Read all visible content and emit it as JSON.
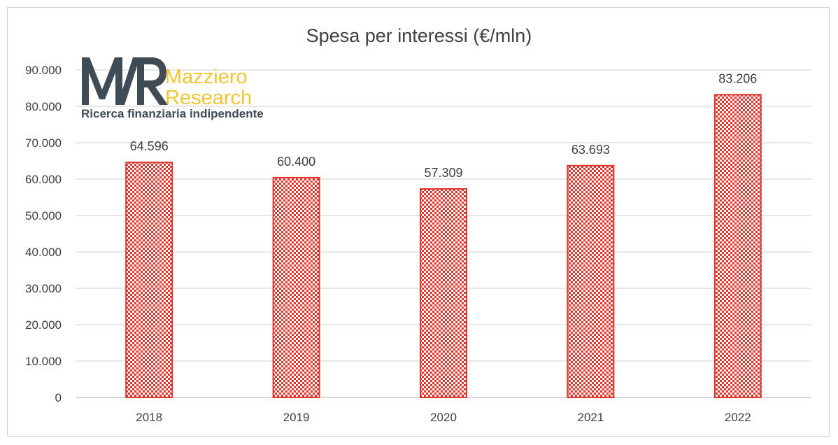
{
  "chart_data": {
    "type": "bar",
    "title": "Spesa per interessi (€/mln)",
    "categories": [
      "2018",
      "2019",
      "2020",
      "2021",
      "2022"
    ],
    "values": [
      64596,
      60400,
      57309,
      63693,
      83206
    ],
    "data_labels": [
      "64.596",
      "60.400",
      "57.309",
      "63.693",
      "83.206"
    ],
    "yticks": [
      0,
      10000,
      20000,
      30000,
      40000,
      50000,
      60000,
      70000,
      80000,
      90000
    ],
    "ytick_labels": [
      "0",
      "10.000",
      "20.000",
      "30.000",
      "40.000",
      "50.000",
      "60.000",
      "70.000",
      "80.000",
      "90.000"
    ],
    "ylim": [
      0,
      90000
    ],
    "xlabel": "",
    "ylabel": "",
    "grid": true,
    "legend": "none",
    "bar_color": "#e2342c",
    "bar_pattern": "checkered"
  },
  "logo": {
    "monogram": "MR",
    "name_line1": "Mazziero",
    "name_line2": "Research",
    "tagline": "Ricerca finanziaria indipendente",
    "color_dark": "#3f4c55",
    "color_accent": "#f2c531"
  }
}
